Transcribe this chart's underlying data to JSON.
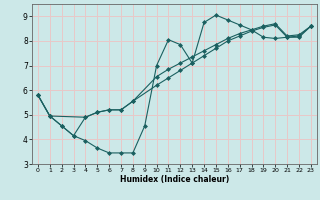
{
  "xlabel": "Humidex (Indice chaleur)",
  "bg_color": "#cce8e8",
  "grid_color": "#e8c8c8",
  "line_color": "#1a6060",
  "xlim": [
    -0.5,
    23.5
  ],
  "ylim": [
    3,
    9.5
  ],
  "xticks": [
    0,
    1,
    2,
    3,
    4,
    5,
    6,
    7,
    8,
    9,
    10,
    11,
    12,
    13,
    14,
    15,
    16,
    17,
    18,
    19,
    20,
    21,
    22,
    23
  ],
  "yticks": [
    3,
    4,
    5,
    6,
    7,
    8,
    9
  ],
  "line1_x": [
    0,
    1,
    2,
    3,
    4,
    5,
    6,
    7,
    8,
    9,
    10,
    11,
    12,
    13,
    14,
    15,
    16,
    17,
    18,
    19,
    20,
    21,
    22,
    23
  ],
  "line1_y": [
    5.8,
    4.95,
    4.55,
    4.15,
    3.95,
    3.65,
    3.45,
    3.45,
    3.45,
    4.55,
    7.0,
    8.05,
    7.85,
    7.1,
    8.75,
    9.05,
    8.85,
    8.65,
    8.45,
    8.15,
    8.1,
    8.15,
    8.15,
    8.6
  ],
  "line2_x": [
    0,
    1,
    2,
    3,
    4,
    5,
    6,
    7,
    8,
    10,
    11,
    12,
    13,
    14,
    15,
    16,
    17,
    18,
    19,
    20,
    21,
    22,
    23
  ],
  "line2_y": [
    5.8,
    4.95,
    4.55,
    4.15,
    4.9,
    5.1,
    5.2,
    5.2,
    5.55,
    6.2,
    6.5,
    6.8,
    7.1,
    7.4,
    7.7,
    8.0,
    8.2,
    8.4,
    8.55,
    8.65,
    8.15,
    8.2,
    8.6
  ],
  "line3_x": [
    0,
    1,
    4,
    5,
    6,
    7,
    8,
    10,
    11,
    12,
    13,
    14,
    15,
    16,
    17,
    18,
    19,
    20,
    21,
    22,
    23
  ],
  "line3_y": [
    5.8,
    4.95,
    4.9,
    5.1,
    5.2,
    5.2,
    5.55,
    6.55,
    6.85,
    7.1,
    7.35,
    7.6,
    7.85,
    8.1,
    8.3,
    8.45,
    8.6,
    8.7,
    8.2,
    8.25,
    8.6
  ],
  "marker": "D",
  "marker_size": 2.0,
  "linewidth": 0.8
}
